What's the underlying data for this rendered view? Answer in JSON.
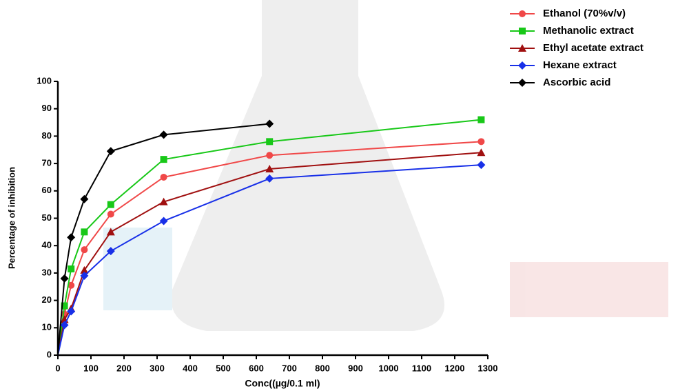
{
  "chart_data": {
    "type": "line",
    "x_label": "Conc((µg/0.1 ml)",
    "y_label": "Percentage of inhibition",
    "x": [
      0,
      20,
      40,
      80,
      160,
      320,
      640,
      1280
    ],
    "series": [
      {
        "name": "Ethanol (70%v/v)",
        "color": "#f04848",
        "marker": "circle",
        "values": [
          0,
          15,
          25.5,
          38.5,
          51.5,
          65,
          73,
          78
        ]
      },
      {
        "name": "Methanolic extract",
        "color": "#18c818",
        "marker": "square",
        "values": [
          0,
          18,
          31.5,
          45,
          55,
          71.5,
          78,
          86
        ]
      },
      {
        "name": "Ethyl acetate extract",
        "color": "#a01010",
        "marker": "triangle",
        "values": [
          0,
          13,
          17,
          31,
          45,
          56,
          68,
          74
        ]
      },
      {
        "name": "Hexane extract",
        "color": "#1830e8",
        "marker": "diamond",
        "values": [
          0,
          11,
          16,
          29,
          38,
          49,
          64.5,
          69.5
        ]
      },
      {
        "name": "Ascorbic acid",
        "color": "#000000",
        "marker": "diamond",
        "values": [
          0,
          28,
          43,
          57,
          74.5,
          80.5,
          84.5,
          null
        ]
      }
    ],
    "xlim": [
      0,
      1300
    ],
    "xticks": [
      0,
      100,
      200,
      300,
      400,
      500,
      600,
      700,
      800,
      900,
      1000,
      1100,
      1200,
      1300
    ],
    "ylim": [
      0,
      100
    ],
    "yticks": [
      0,
      10,
      20,
      30,
      40,
      50,
      60,
      70,
      80,
      90,
      100
    ],
    "legend": "top-right"
  }
}
